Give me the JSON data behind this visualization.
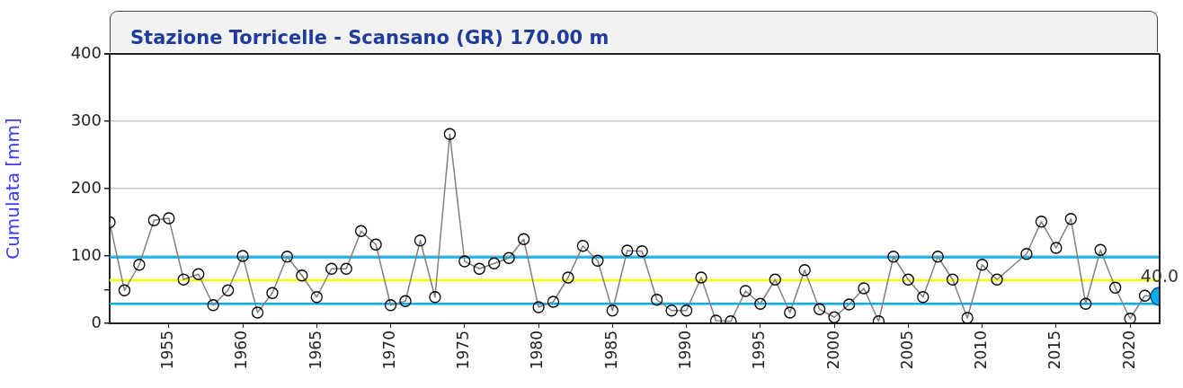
{
  "chart_data": {
    "type": "line",
    "title": "Stazione Torricelle - Scansano (GR) 170.00 m",
    "ylabel": "Cumulata [mm]",
    "x": [
      1951,
      1952,
      1953,
      1954,
      1955,
      1956,
      1957,
      1958,
      1959,
      1960,
      1961,
      1962,
      1963,
      1964,
      1965,
      1966,
      1967,
      1968,
      1969,
      1970,
      1971,
      1972,
      1973,
      1974,
      1975,
      1976,
      1977,
      1978,
      1979,
      1980,
      1981,
      1982,
      1983,
      1984,
      1985,
      1986,
      1987,
      1988,
      1989,
      1990,
      1991,
      1992,
      1993,
      1994,
      1995,
      1996,
      1997,
      1998,
      1999,
      2000,
      2001,
      2002,
      2003,
      2004,
      2005,
      2006,
      2007,
      2008,
      2009,
      2010,
      2011,
      2012,
      2013,
      2014,
      2015,
      2016,
      2017,
      2018,
      2019,
      2020,
      2021,
      2022
    ],
    "xlim": [
      1951,
      2022
    ],
    "xticks": [
      1955,
      1960,
      1965,
      1970,
      1975,
      1980,
      1985,
      1990,
      1995,
      2000,
      2005,
      2010,
      2015,
      2020
    ],
    "ylim": [
      0,
      400
    ],
    "yticks": [
      0,
      {
        "value": 50,
        "label": null
      },
      100,
      200,
      300,
      400
    ],
    "series": [
      {
        "color": "#808080",
        "values": [
          150,
          49,
          87,
          153,
          156,
          65,
          73,
          27,
          49,
          100,
          16,
          45,
          99,
          71,
          39,
          81,
          81,
          137,
          117,
          27,
          33,
          123,
          39,
          281,
          92,
          81,
          89,
          97,
          125,
          24,
          32,
          68,
          115,
          93,
          19,
          108,
          107,
          35,
          19,
          19,
          68,
          4,
          3,
          48,
          29,
          65,
          16,
          79,
          21,
          9,
          28,
          52,
          3,
          99,
          65,
          39,
          99,
          65,
          8,
          87,
          65,
          null,
          103,
          151,
          112,
          155,
          29,
          109,
          53,
          7,
          41,
          40.0
        ],
        "colors": [
          "#000000",
          "#000000",
          "#000000",
          "#000000",
          "#000000",
          "#000000",
          "#000000",
          "#000000",
          "#000000",
          "#000000",
          "#000000",
          "#000000",
          "#000000",
          "#000000",
          "#000000",
          "#000000",
          "#000000",
          "#000000",
          "#000000",
          "#000000",
          "#000000",
          "#000000",
          "#000000",
          "#000000",
          "#000000",
          "#000000",
          "#000000",
          "#000000",
          "#000000",
          "#000000",
          "#000000",
          "#000000",
          "#000000",
          "#000000",
          "#000000",
          "#000000",
          "#000000",
          "#000000",
          "#000000",
          "#000000",
          "#000000",
          "#000000",
          "#000000",
          "#000000",
          "#000000",
          "#000000",
          "#000000",
          "#000000",
          "#000000",
          "#000000",
          "#000000",
          "#000000",
          "#000000",
          "#000000",
          "#000000",
          "#000000",
          "#000000",
          "#000000",
          "#000000",
          "#000000",
          "#000000",
          "#000000",
          "#000000",
          "#000000",
          "#000000",
          "#000000",
          "#000000",
          "#000000",
          "#000000",
          "#000000",
          "#000000",
          "#00b0f0"
        ],
        "value_labels": [
          null,
          null,
          null,
          null,
          null,
          null,
          null,
          null,
          null,
          null,
          null,
          null,
          null,
          null,
          null,
          null,
          null,
          null,
          null,
          null,
          null,
          null,
          null,
          null,
          null,
          null,
          null,
          null,
          null,
          null,
          null,
          null,
          null,
          null,
          null,
          null,
          null,
          null,
          null,
          null,
          null,
          null,
          null,
          null,
          null,
          null,
          null,
          null,
          null,
          null,
          null,
          null,
          null,
          null,
          null,
          null,
          null,
          null,
          null,
          null,
          null,
          null,
          null,
          null,
          null,
          null,
          null,
          null,
          null,
          null,
          null,
          "40.0"
        ]
      }
    ],
    "ref_lines": [
      {
        "axis": "y",
        "value": 98,
        "color": "#00b0f0"
      },
      {
        "axis": "y",
        "value": 64,
        "color": "#ffff00"
      },
      {
        "axis": "y",
        "value": 29,
        "color": "#00b0f0"
      }
    ],
    "marker": "circle",
    "grid": "y",
    "legend": false
  }
}
